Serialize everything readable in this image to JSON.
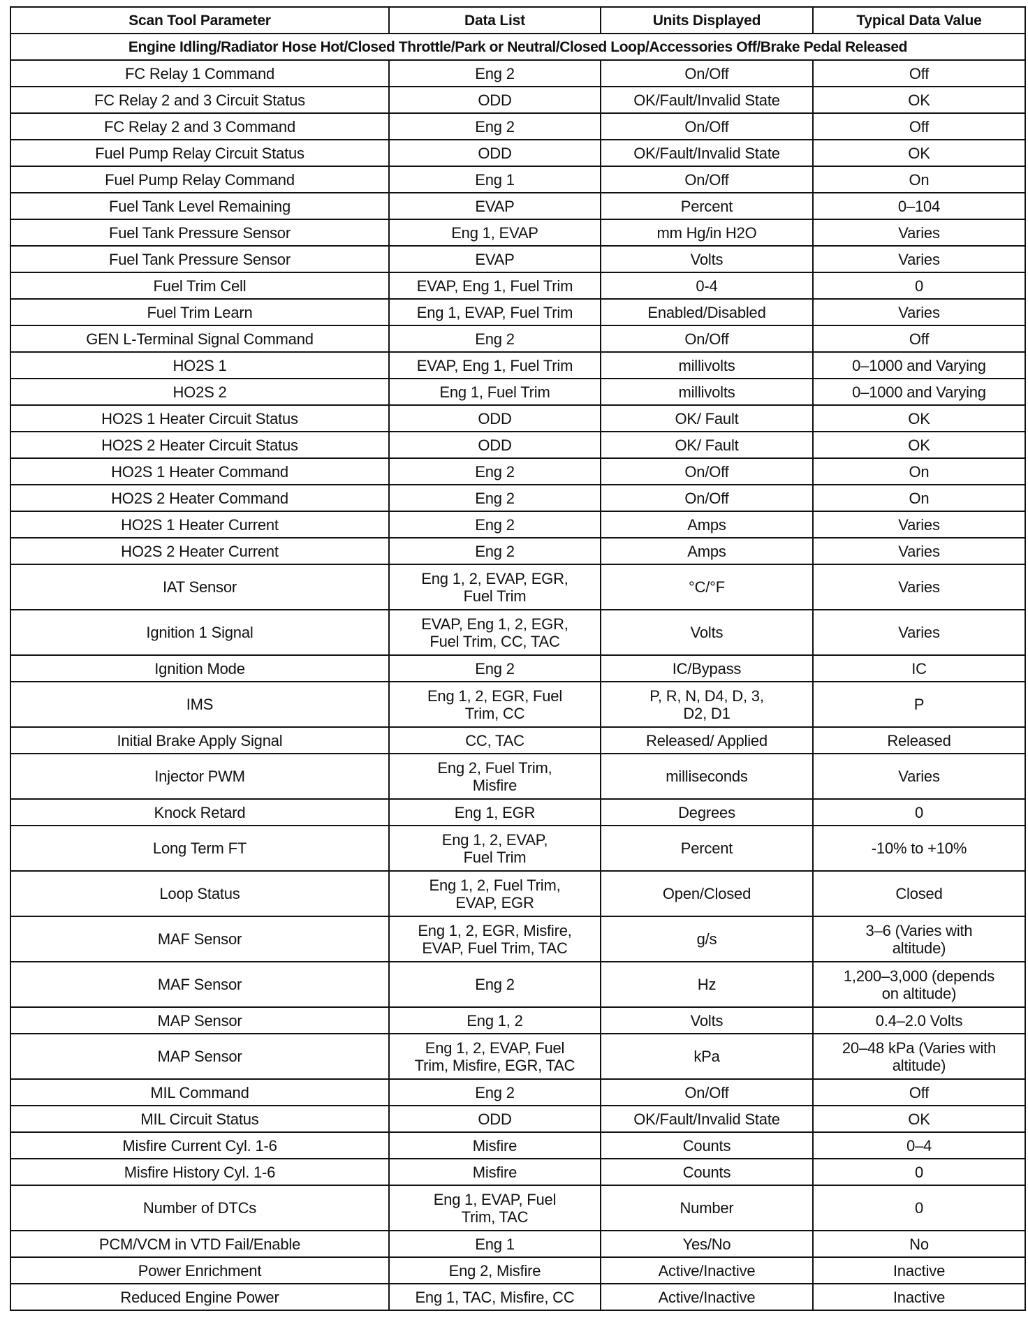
{
  "table": {
    "headers": [
      "Scan Tool Parameter",
      "Data List",
      "Units Displayed",
      "Typical Data Value"
    ],
    "condition": "Engine Idling/Radiator Hose Hot/Closed Throttle/Park or Neutral/Closed Loop/Accessories Off/Brake Pedal Released",
    "rows": [
      [
        "FC Relay 1 Command",
        "Eng 2",
        "On/Off",
        "Off"
      ],
      [
        "FC Relay 2 and 3 Circuit Status",
        "ODD",
        "OK/Fault/Invalid State",
        "OK"
      ],
      [
        "FC Relay 2 and 3 Command",
        "Eng 2",
        "On/Off",
        "Off"
      ],
      [
        "Fuel Pump Relay Circuit Status",
        "ODD",
        "OK/Fault/Invalid State",
        "OK"
      ],
      [
        "Fuel Pump Relay Command",
        "Eng 1",
        "On/Off",
        "On"
      ],
      [
        "Fuel Tank Level Remaining",
        "EVAP",
        "Percent",
        "0–104"
      ],
      [
        "Fuel Tank Pressure Sensor",
        "Eng 1, EVAP",
        "mm Hg/in H2O",
        "Varies"
      ],
      [
        "Fuel Tank Pressure Sensor",
        "EVAP",
        "Volts",
        "Varies"
      ],
      [
        "Fuel Trim Cell",
        "EVAP, Eng 1, Fuel Trim",
        "0-4",
        "0"
      ],
      [
        "Fuel Trim Learn",
        "Eng 1, EVAP, Fuel Trim",
        "Enabled/Disabled",
        "Varies"
      ],
      [
        "GEN L-Terminal Signal Command",
        "Eng 2",
        "On/Off",
        "Off"
      ],
      [
        "HO2S 1",
        "EVAP, Eng 1, Fuel Trim",
        "millivolts",
        "0–1000 and Varying"
      ],
      [
        "HO2S 2",
        "Eng 1, Fuel Trim",
        "millivolts",
        "0–1000 and Varying"
      ],
      [
        "HO2S 1 Heater Circuit Status",
        "ODD",
        "OK/ Fault",
        "OK"
      ],
      [
        "HO2S 2 Heater Circuit Status",
        "ODD",
        "OK/ Fault",
        "OK"
      ],
      [
        "HO2S 1 Heater Command",
        "Eng 2",
        "On/Off",
        "On"
      ],
      [
        "HO2S 2 Heater Command",
        "Eng 2",
        "On/Off",
        "On"
      ],
      [
        "HO2S 1 Heater Current",
        "Eng 2",
        "Amps",
        "Varies"
      ],
      [
        "HO2S 2 Heater Current",
        "Eng 2",
        "Amps",
        "Varies"
      ],
      [
        "IAT Sensor",
        "Eng 1, 2, EVAP, EGR,\nFuel Trim",
        "°C/°F",
        "Varies"
      ],
      [
        "Ignition 1 Signal",
        "EVAP, Eng 1, 2, EGR,\nFuel Trim, CC, TAC",
        "Volts",
        "Varies"
      ],
      [
        "Ignition Mode",
        "Eng 2",
        "IC/Bypass",
        "IC"
      ],
      [
        "IMS",
        "Eng 1, 2, EGR, Fuel\nTrim, CC",
        "P, R, N, D4, D, 3,\nD2, D1",
        "P"
      ],
      [
        "Initial Brake Apply Signal",
        "CC, TAC",
        "Released/ Applied",
        "Released"
      ],
      [
        "Injector PWM",
        "Eng 2, Fuel Trim,\nMisfire",
        "milliseconds",
        "Varies"
      ],
      [
        "Knock Retard",
        "Eng 1, EGR",
        "Degrees",
        "0"
      ],
      [
        "Long Term FT",
        "Eng 1, 2, EVAP,\nFuel Trim",
        "Percent",
        "-10% to +10%"
      ],
      [
        "Loop Status",
        "Eng 1, 2, Fuel Trim,\nEVAP, EGR",
        "Open/Closed",
        "Closed"
      ],
      [
        "MAF Sensor",
        "Eng 1, 2, EGR, Misfire,\nEVAP, Fuel Trim, TAC",
        "g/s",
        "3–6 (Varies with\naltitude)"
      ],
      [
        "MAF Sensor",
        "Eng 2",
        "Hz",
        "1,200–3,000 (depends\non altitude)"
      ],
      [
        "MAP Sensor",
        "Eng 1, 2",
        "Volts",
        "0.4–2.0 Volts"
      ],
      [
        "MAP Sensor",
        "Eng 1, 2, EVAP, Fuel\nTrim, Misfire, EGR, TAC",
        "kPa",
        "20–48 kPa (Varies with\naltitude)"
      ],
      [
        "MIL Command",
        "Eng 2",
        "On/Off",
        "Off"
      ],
      [
        "MIL Circuit Status",
        "ODD",
        "OK/Fault/Invalid State",
        "OK"
      ],
      [
        "Misfire Current Cyl. 1-6",
        "Misfire",
        "Counts",
        "0–4"
      ],
      [
        "Misfire History Cyl. 1-6",
        "Misfire",
        "Counts",
        "0"
      ],
      [
        "Number of DTCs",
        "Eng 1, EVAP, Fuel\nTrim, TAC",
        "Number",
        "0"
      ],
      [
        "PCM/VCM in VTD Fail/Enable",
        "Eng 1",
        "Yes/No",
        "No"
      ],
      [
        "Power Enrichment",
        "Eng 2, Misfire",
        "Active/Inactive",
        "Inactive"
      ],
      [
        "Reduced Engine Power",
        "Eng 1, TAC, Misfire, CC",
        "Active/Inactive",
        "Inactive"
      ]
    ]
  }
}
